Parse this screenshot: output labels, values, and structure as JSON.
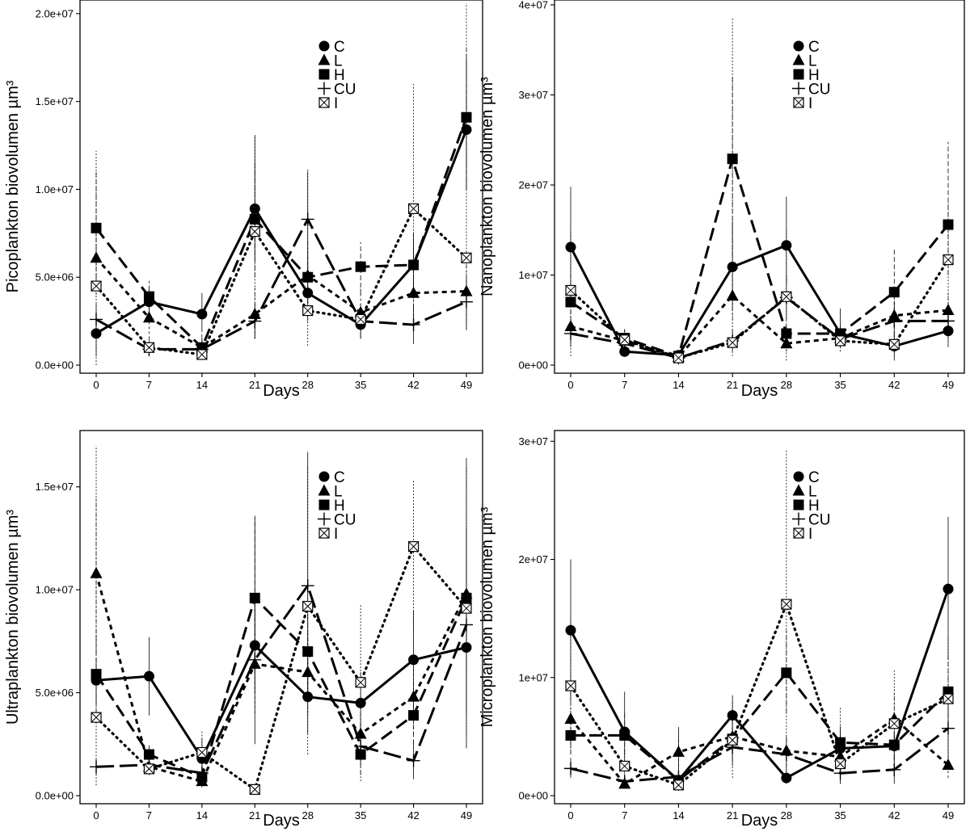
{
  "chart_data": [
    {
      "type": "line",
      "x": [
        0,
        7,
        14,
        21,
        28,
        35,
        42,
        49
      ],
      "xlabel": "Days",
      "ylabel": "Picoplankton biovolumen µm³",
      "ylim": [
        0,
        20500000.0
      ],
      "yticks": [
        0,
        5000000.0,
        10000000.0,
        15000000.0,
        20000000.0
      ],
      "ytick_labels": [
        "0.0e+00",
        "5.0e+06",
        "1.0e+07",
        "1.5e+07",
        "2.0e+07"
      ],
      "legend_position": "top-right",
      "grid": false,
      "series": [
        {
          "name": "C",
          "values": [
            1800000.0,
            3600000.0,
            2900000.0,
            8900000.0,
            4100000.0,
            2300000.0,
            5700000.0,
            13400000.0
          ],
          "err_low": [
            500000.0,
            3000000.0,
            2000000.0,
            6000000.0,
            2500000.0,
            1500000.0,
            4000000.0,
            10000000.0
          ],
          "err_high": [
            2500000.0,
            4300000.0,
            4100000.0,
            13100000.0,
            5500000.0,
            3200000.0,
            7500000.0,
            17500000.0
          ]
        },
        {
          "name": "L",
          "values": [
            6100000.0,
            2700000.0,
            1000000.0,
            2900000.0,
            5100000.0,
            3000000.0,
            4100000.0,
            4200000.0
          ],
          "err_low": [
            4000000.0,
            1500000.0,
            500000.0,
            1500000.0,
            3000000.0,
            2000000.0,
            2500000.0,
            2500000.0
          ],
          "err_high": [
            8000000.0,
            4000000.0,
            2000000.0,
            4500000.0,
            7000000.0,
            4500000.0,
            6000000.0,
            6000000.0
          ]
        },
        {
          "name": "H",
          "values": [
            7800000.0,
            3900000.0,
            1000000.0,
            8300000.0,
            5000000.0,
            5600000.0,
            5700000.0,
            14100000.0
          ],
          "err_low": [
            4500000.0,
            3000000.0,
            500000.0,
            5000000.0,
            3500000.0,
            4000000.0,
            4000000.0,
            10000000.0
          ],
          "err_high": [
            11000000.0,
            4800000.0,
            1600000.0,
            11500000.0,
            6500000.0,
            7000000.0,
            7500000.0,
            18000000.0
          ]
        },
        {
          "name": "CU",
          "values": [
            2600000.0,
            900000.0,
            900000.0,
            2500000.0,
            8300000.0,
            2500000.0,
            2300000.0,
            3600000.0
          ],
          "err_low": [
            1500000.0,
            500000.0,
            400000.0,
            1500000.0,
            5000000.0,
            1500000.0,
            1200000.0,
            2000000.0
          ],
          "err_high": [
            3500000.0,
            1400000.0,
            1400000.0,
            3500000.0,
            11000000.0,
            3500000.0,
            3500000.0,
            5000000.0
          ]
        },
        {
          "name": "I",
          "values": [
            4500000.0,
            1000000.0,
            600000.0,
            7600000.0,
            3100000.0,
            2600000.0,
            8900000.0,
            6100000.0
          ],
          "err_low": [
            0.0,
            500000.0,
            300000.0,
            1500000.0,
            1100000.0,
            2000000.0,
            2500000.0,
            2000000.0
          ],
          "err_high": [
            12200000.0,
            1500000.0,
            1000000.0,
            13000000.0,
            11200000.0,
            3200000.0,
            16000000.0,
            20600000.0
          ]
        }
      ]
    },
    {
      "type": "line",
      "x": [
        0,
        7,
        14,
        21,
        28,
        35,
        42,
        49
      ],
      "xlabel": "Days",
      "ylabel": "Nanoplankton biovolumen µm³",
      "ylim": [
        0,
        40000000.0
      ],
      "yticks": [
        0,
        10000000.0,
        20000000.0,
        30000000.0,
        40000000.0
      ],
      "ytick_labels": [
        "0e+00",
        "1e+07",
        "2e+07",
        "3e+07",
        "4e+07"
      ],
      "legend_position": "top-right",
      "grid": false,
      "series": [
        {
          "name": "C",
          "values": [
            13100000.0,
            1500000.0,
            1100000.0,
            10900000.0,
            13300000.0,
            3500000.0,
            2100000.0,
            3800000.0
          ],
          "err_low": [
            6500000.0,
            1000000.0,
            600000.0,
            6000000.0,
            9000000.0,
            2500000.0,
            500000.0,
            2000000.0
          ],
          "err_high": [
            19800000.0,
            2000000.0,
            1600000.0,
            16000000.0,
            18700000.0,
            6300000.0,
            3500000.0,
            5500000.0
          ]
        },
        {
          "name": "L",
          "values": [
            4300000.0,
            2700000.0,
            900000.0,
            7700000.0,
            2400000.0,
            3000000.0,
            5500000.0,
            6100000.0
          ],
          "err_low": [
            2500000.0,
            1500000.0,
            500000.0,
            5000000.0,
            1500000.0,
            2000000.0,
            3500000.0,
            4000000.0
          ],
          "err_high": [
            6000000.0,
            4000000.0,
            1400000.0,
            10000000.0,
            3500000.0,
            4000000.0,
            7500000.0,
            8000000.0
          ]
        },
        {
          "name": "H",
          "values": [
            7000000.0,
            3000000.0,
            1000000.0,
            22900000.0,
            3500000.0,
            3500000.0,
            8100000.0,
            15600000.0
          ],
          "err_low": [
            4000000.0,
            2000000.0,
            500000.0,
            12000000.0,
            2500000.0,
            2500000.0,
            5000000.0,
            10000000.0
          ],
          "err_high": [
            10000000.0,
            4000000.0,
            1500000.0,
            32000000.0,
            4500000.0,
            4500000.0,
            13000000.0,
            24800000.0
          ]
        },
        {
          "name": "CU",
          "values": [
            3500000.0,
            2400000.0,
            800000.0,
            2700000.0,
            7500000.0,
            2900000.0,
            4900000.0,
            4900000.0
          ],
          "err_low": [
            2000000.0,
            1500000.0,
            400000.0,
            1500000.0,
            5000000.0,
            2000000.0,
            3000000.0,
            3000000.0
          ],
          "err_high": [
            5000000.0,
            3500000.0,
            1200000.0,
            4000000.0,
            10000000.0,
            4000000.0,
            7000000.0,
            7000000.0
          ]
        },
        {
          "name": "I",
          "values": [
            8300000.0,
            2800000.0,
            800000.0,
            2500000.0,
            7600000.0,
            2700000.0,
            2300000.0,
            11700000.0
          ],
          "err_low": [
            1000000.0,
            1500000.0,
            300000.0,
            1000000.0,
            500000.0,
            1500000.0,
            1000000.0,
            5000000.0
          ],
          "err_high": [
            15000000.0,
            4000000.0,
            1300000.0,
            38500000.0,
            15000000.0,
            4000000.0,
            3800000.0,
            18000000.0
          ]
        }
      ]
    },
    {
      "type": "line",
      "x": [
        0,
        7,
        14,
        21,
        28,
        35,
        42,
        49
      ],
      "xlabel": "Days",
      "ylabel": "Ultraplankton biovolumen µm³",
      "ylim": [
        0,
        17500000.0
      ],
      "yticks": [
        0,
        5000000.0,
        10000000.0,
        15000000.0
      ],
      "ytick_labels": [
        "0.0e+00",
        "5.0e+06",
        "1.0e+07",
        "1.5e+07"
      ],
      "legend_position": "top-right",
      "grid": false,
      "series": [
        {
          "name": "C",
          "values": [
            5600000.0,
            5800000.0,
            1800000.0,
            7300000.0,
            4800000.0,
            4500000.0,
            6600000.0,
            7200000.0
          ],
          "err_low": [
            4500000.0,
            3900000.0,
            1000000.0,
            5000000.0,
            3000000.0,
            3000000.0,
            4000000.0,
            2300000.0
          ],
          "err_high": [
            6700000.0,
            7700000.0,
            2800000.0,
            9500000.0,
            6500000.0,
            6000000.0,
            9000000.0,
            12000000.0
          ]
        },
        {
          "name": "L",
          "values": [
            10800000.0,
            1400000.0,
            700000.0,
            6400000.0,
            6000000.0,
            3000000.0,
            4800000.0,
            9800000.0
          ],
          "err_low": [
            7000000.0,
            1000000.0,
            400000.0,
            4000000.0,
            4000000.0,
            2000000.0,
            3000000.0,
            6000000.0
          ],
          "err_high": [
            14500000.0,
            1800000.0,
            1000000.0,
            9000000.0,
            8000000.0,
            4000000.0,
            6500000.0,
            13000000.0
          ]
        },
        {
          "name": "H",
          "values": [
            5900000.0,
            2000000.0,
            900000.0,
            9600000.0,
            7000000.0,
            2000000.0,
            3900000.0,
            9600000.0
          ],
          "err_low": [
            4000000.0,
            1500000.0,
            500000.0,
            6000000.0,
            5000000.0,
            1000000.0,
            2500000.0,
            6000000.0
          ],
          "err_high": [
            8000000.0,
            2500000.0,
            1300000.0,
            13500000.0,
            9000000.0,
            3000000.0,
            5500000.0,
            13000000.0
          ]
        },
        {
          "name": "CU",
          "values": [
            1400000.0,
            1500000.0,
            1100000.0,
            6600000.0,
            10200000.0,
            2400000.0,
            1700000.0,
            8300000.0
          ],
          "err_low": [
            1000000.0,
            1000000.0,
            600000.0,
            2500000.0,
            5000000.0,
            1500000.0,
            800000.0,
            4000000.0
          ],
          "err_high": [
            1800000.0,
            2000000.0,
            1600000.0,
            13600000.0,
            16700000.0,
            3500000.0,
            2600000.0,
            16400000.0
          ]
        },
        {
          "name": "I",
          "values": [
            3800000.0,
            1300000.0,
            2100000.0,
            300000.0,
            9200000.0,
            5500000.0,
            12100000.0,
            9100000.0
          ],
          "err_low": [
            500000.0,
            1000000.0,
            1000000.0,
            100000.0,
            2000000.0,
            700000.0,
            8000000.0,
            3000000.0
          ],
          "err_high": [
            17000000.0,
            2000000.0,
            3200000.0,
            500000.0,
            16000000.0,
            9300000.0,
            15300000.0,
            16000000.0
          ]
        }
      ]
    },
    {
      "type": "line",
      "x": [
        0,
        7,
        14,
        21,
        28,
        35,
        42,
        49
      ],
      "xlabel": "Days",
      "ylabel": "Microplankton biovolumen µm³",
      "ylim": [
        0,
        30500000.0
      ],
      "yticks": [
        0,
        10000000.0,
        20000000.0,
        30000000.0
      ],
      "ytick_labels": [
        "0e+00",
        "1e+07",
        "2e+07",
        "3e+07"
      ],
      "legend_position": "top-right",
      "grid": false,
      "series": [
        {
          "name": "C",
          "values": [
            14000000.0,
            5400000.0,
            1300000.0,
            6800000.0,
            1500000.0,
            4000000.0,
            4200000.0,
            17500000.0
          ],
          "err_low": [
            8000000.0,
            2000000.0,
            800000.0,
            5000000.0,
            1000000.0,
            2500000.0,
            3000000.0,
            11500000.0
          ],
          "err_high": [
            20000000.0,
            8800000.0,
            1800000.0,
            8500000.0,
            2000000.0,
            5500000.0,
            5500000.0,
            23600000.0
          ]
        },
        {
          "name": "L",
          "values": [
            6500000.0,
            1000000.0,
            3700000.0,
            5000000.0,
            3800000.0,
            3300000.0,
            6500000.0,
            2600000.0
          ],
          "err_low": [
            4000000.0,
            600000.0,
            2500000.0,
            3500000.0,
            2500000.0,
            2000000.0,
            4000000.0,
            1500000.0
          ],
          "err_high": [
            9000000.0,
            1500000.0,
            5000000.0,
            6500000.0,
            5000000.0,
            4500000.0,
            9000000.0,
            3500000.0
          ]
        },
        {
          "name": "H",
          "values": [
            5100000.0,
            5100000.0,
            1300000.0,
            4800000.0,
            10400000.0,
            4500000.0,
            4300000.0,
            8800000.0
          ],
          "err_low": [
            3500000.0,
            3500000.0,
            800000.0,
            3000000.0,
            7000000.0,
            3000000.0,
            3000000.0,
            6000000.0
          ],
          "err_high": [
            7000000.0,
            7000000.0,
            1800000.0,
            6500000.0,
            14000000.0,
            6000000.0,
            5500000.0,
            12000000.0
          ]
        },
        {
          "name": "CU",
          "values": [
            2300000.0,
            1200000.0,
            1600000.0,
            4100000.0,
            3500000.0,
            1900000.0,
            2200000.0,
            5700000.0
          ],
          "err_low": [
            1500000.0,
            600000.0,
            800000.0,
            2500000.0,
            2000000.0,
            1000000.0,
            1000000.0,
            3000000.0
          ],
          "err_high": [
            3200000.0,
            1800000.0,
            5800000.0,
            5800000.0,
            5000000.0,
            3000000.0,
            3500000.0,
            8500000.0
          ]
        },
        {
          "name": "I",
          "values": [
            9300000.0,
            2500000.0,
            900000.0,
            4700000.0,
            16200000.0,
            2700000.0,
            6100000.0,
            8200000.0
          ],
          "err_low": [
            3500000.0,
            1000000.0,
            400000.0,
            1500000.0,
            2000000.0,
            1000000.0,
            2000000.0,
            3000000.0
          ],
          "err_high": [
            15000000.0,
            4000000.0,
            1500000.0,
            8000000.0,
            29300000.0,
            7500000.0,
            10600000.0,
            13500000.0
          ]
        }
      ]
    }
  ]
}
